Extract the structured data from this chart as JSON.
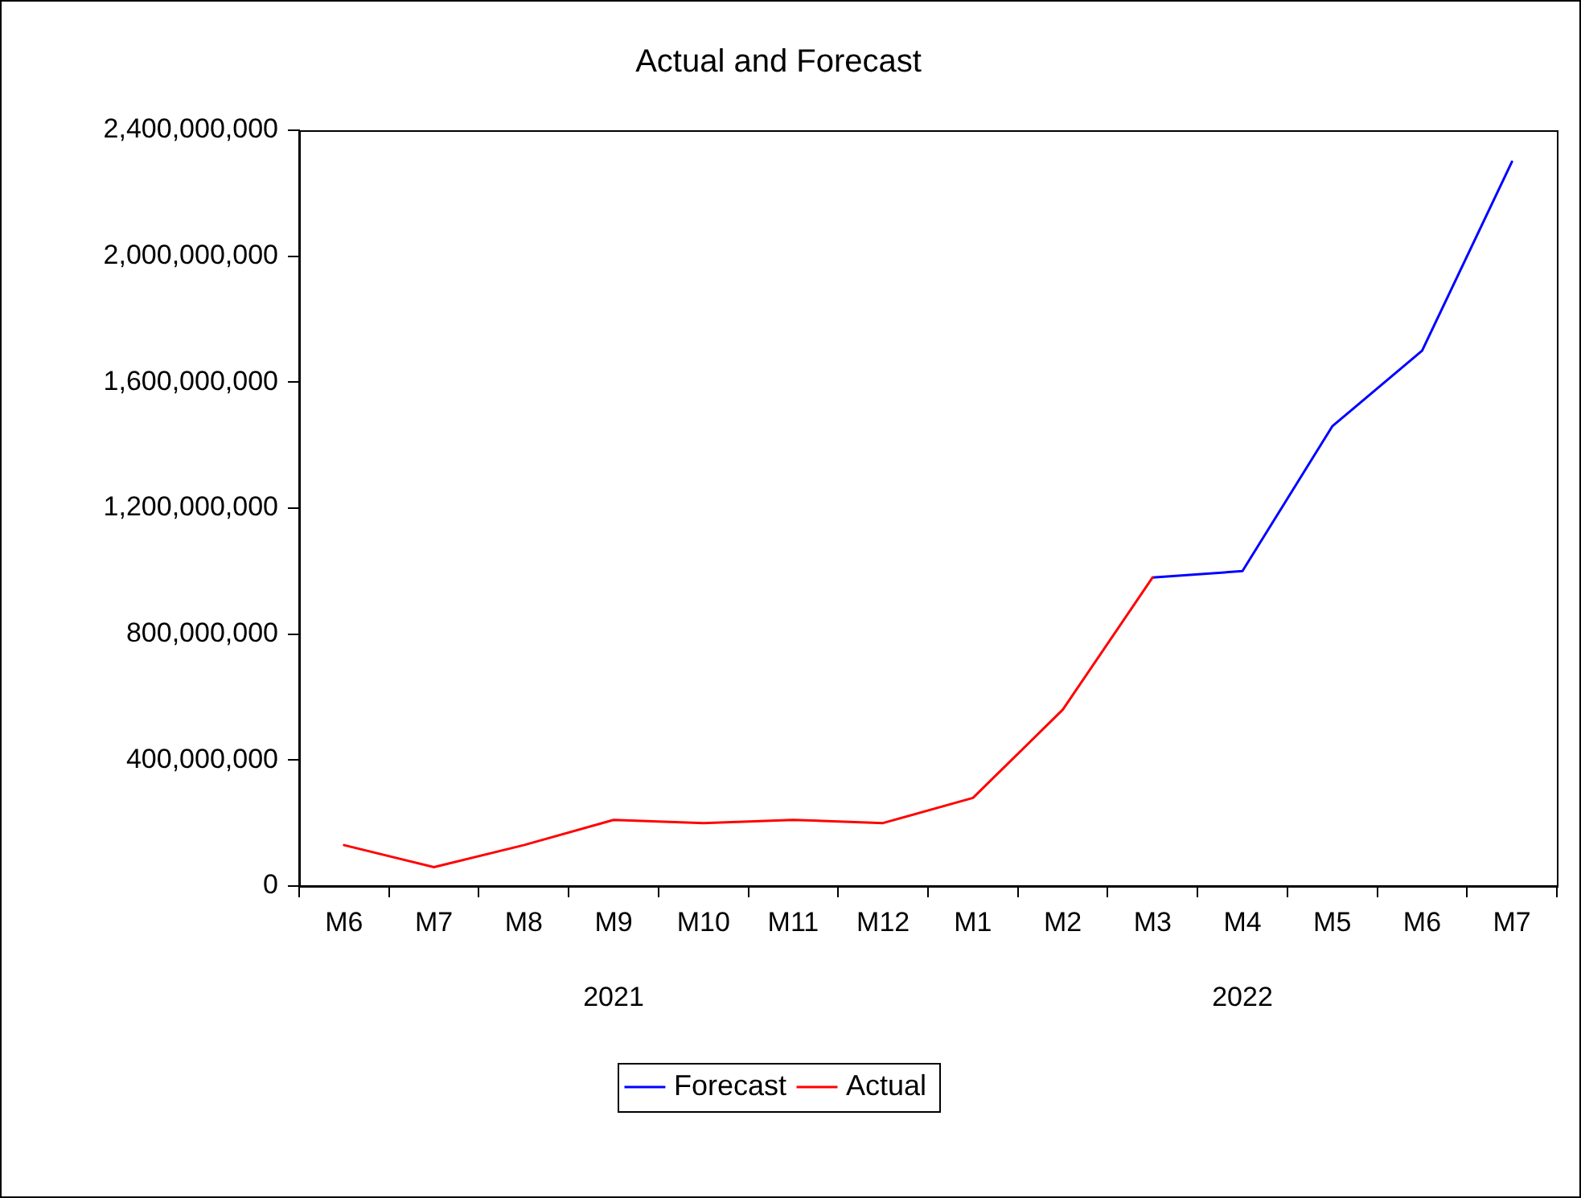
{
  "chart_data": {
    "type": "line",
    "title": "Actual and Forecast",
    "categories": [
      "M6",
      "M7",
      "M8",
      "M9",
      "M10",
      "M11",
      "M12",
      "M1",
      "M2",
      "M3",
      "M4",
      "M5",
      "M6",
      "M7"
    ],
    "series": [
      {
        "name": "Forecast",
        "color": "#0000ff",
        "values": [
          null,
          null,
          null,
          null,
          null,
          null,
          null,
          null,
          null,
          980000000,
          1000000000,
          1460000000,
          1700000000,
          2300000000
        ]
      },
      {
        "name": "Actual",
        "color": "#ff0000",
        "values": [
          130000000,
          60000000,
          130000000,
          210000000,
          200000000,
          210000000,
          200000000,
          280000000,
          560000000,
          980000000,
          null,
          null,
          null,
          null
        ]
      }
    ],
    "annotations": [
      "2021",
      "2022"
    ],
    "ylim": [
      0,
      2400000000
    ],
    "yticks": [
      0,
      {
        "value": 400000000,
        "label": "400,000,000"
      },
      {
        "value": 800000000,
        "label": "800,000,000"
      },
      {
        "value": 1200000000,
        "label": "1,200,000,000"
      },
      {
        "value": 1600000000,
        "label": "1,600,000,000"
      },
      {
        "value": 2000000000,
        "label": "2,000,000,000"
      },
      {
        "value": 2400000000,
        "label": "2,400,000,000"
      }
    ],
    "grid": false,
    "legend": "bottom",
    "marker": "none",
    "line_style": "solid"
  }
}
